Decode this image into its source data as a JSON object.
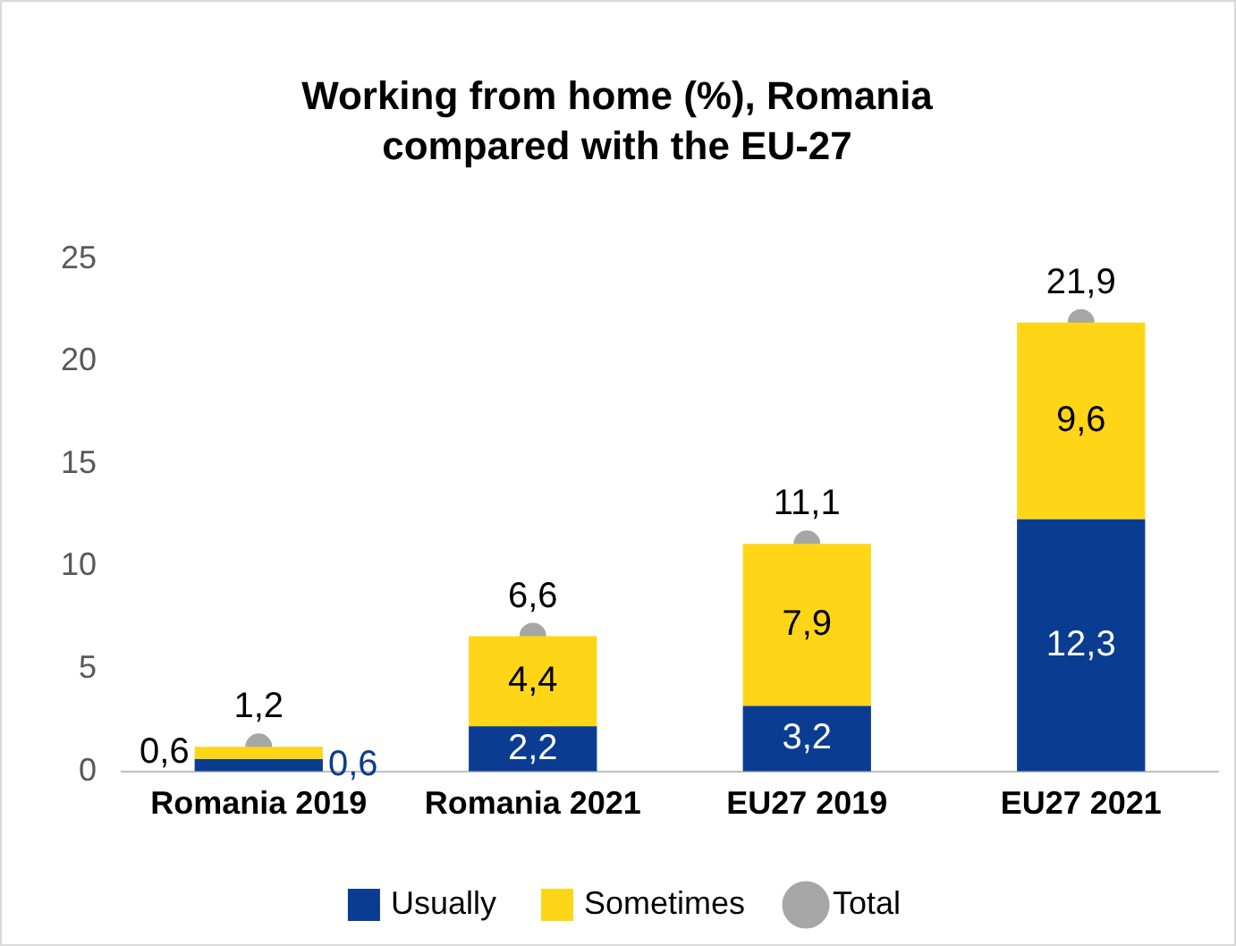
{
  "chart_data": {
    "type": "bar",
    "title": "Working from home (%), Romania compared with the EU-27",
    "categories": [
      "Romania 2019",
      "Romania 2021",
      "EU27 2019",
      "EU27 2021"
    ],
    "stacked": true,
    "series": [
      {
        "name": "Usually",
        "color": "#0a3d91",
        "values": [
          0.6,
          2.2,
          3.2,
          12.3
        ],
        "value_labels": [
          "0,6",
          "2,2",
          "3,2",
          "12,3"
        ]
      },
      {
        "name": "Sometimes",
        "color": "#ffd617",
        "values": [
          0.6,
          4.4,
          7.9,
          9.6
        ],
        "value_labels": [
          "0,6",
          "4,4",
          "7,9",
          "9,6"
        ]
      },
      {
        "name": "Total",
        "type": "scatter",
        "color": "#a6a6a6",
        "x": [
          "Romania 2019",
          "Romania 2021",
          "EU27 2019",
          "EU27 2021"
        ],
        "values": [
          1.2,
          6.6,
          11.1,
          21.9
        ],
        "value_labels": [
          "1,2",
          "6,6",
          "11,1",
          "21,9"
        ]
      }
    ],
    "ylim": [
      0,
      25
    ],
    "yticks": [
      0,
      5,
      10,
      15,
      20,
      25
    ],
    "grid": false,
    "legend": "bottom",
    "marker": "circle"
  }
}
